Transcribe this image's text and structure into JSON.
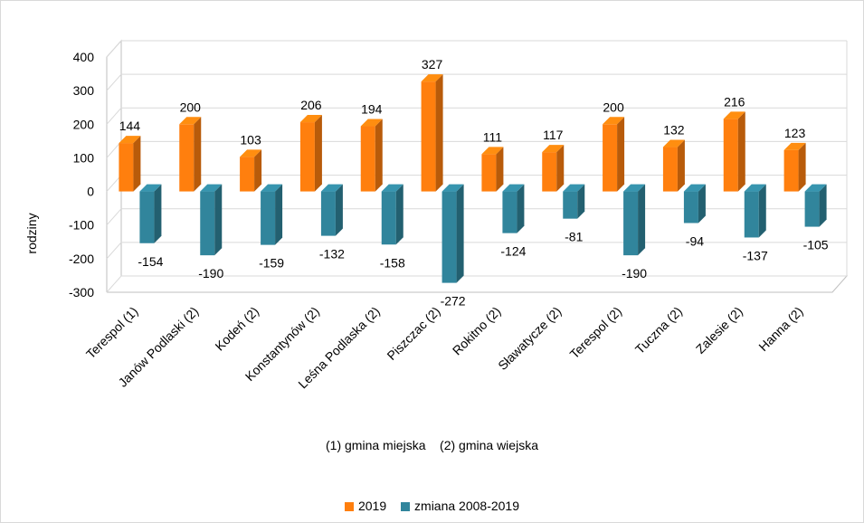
{
  "chart_data": {
    "type": "bar",
    "categories": [
      "Terespol (1)",
      "Janów Podlaski (2)",
      "Kodeń (2)",
      "Konstantynów (2)",
      "Leśna Podlaska (2)",
      "Piszczac (2)",
      "Rokitno (2)",
      "Sławatycze (2)",
      "Terespol (2)",
      "Tuczna (2)",
      "Zalesie (2)",
      "Hanna (2)"
    ],
    "series": [
      {
        "name": "2019",
        "color": "#ff7f0e",
        "values": [
          144,
          200,
          103,
          206,
          194,
          327,
          111,
          117,
          200,
          132,
          216,
          123
        ]
      },
      {
        "name": "zmiana 2008-2019",
        "color": "#31859c",
        "values": [
          -154,
          -190,
          -159,
          -132,
          -158,
          -272,
          -124,
          -81,
          -190,
          -94,
          -137,
          -105
        ]
      }
    ],
    "ylabel": "rodziny",
    "ylim": [
      -300,
      400
    ],
    "yticks": [
      400,
      300,
      200,
      100,
      0,
      -100,
      -200,
      -300
    ],
    "grid": true,
    "style": "3d-clustered",
    "legend_position": "bottom",
    "footnote": "(1) gmina miejska    (2) gmina wiejska"
  }
}
